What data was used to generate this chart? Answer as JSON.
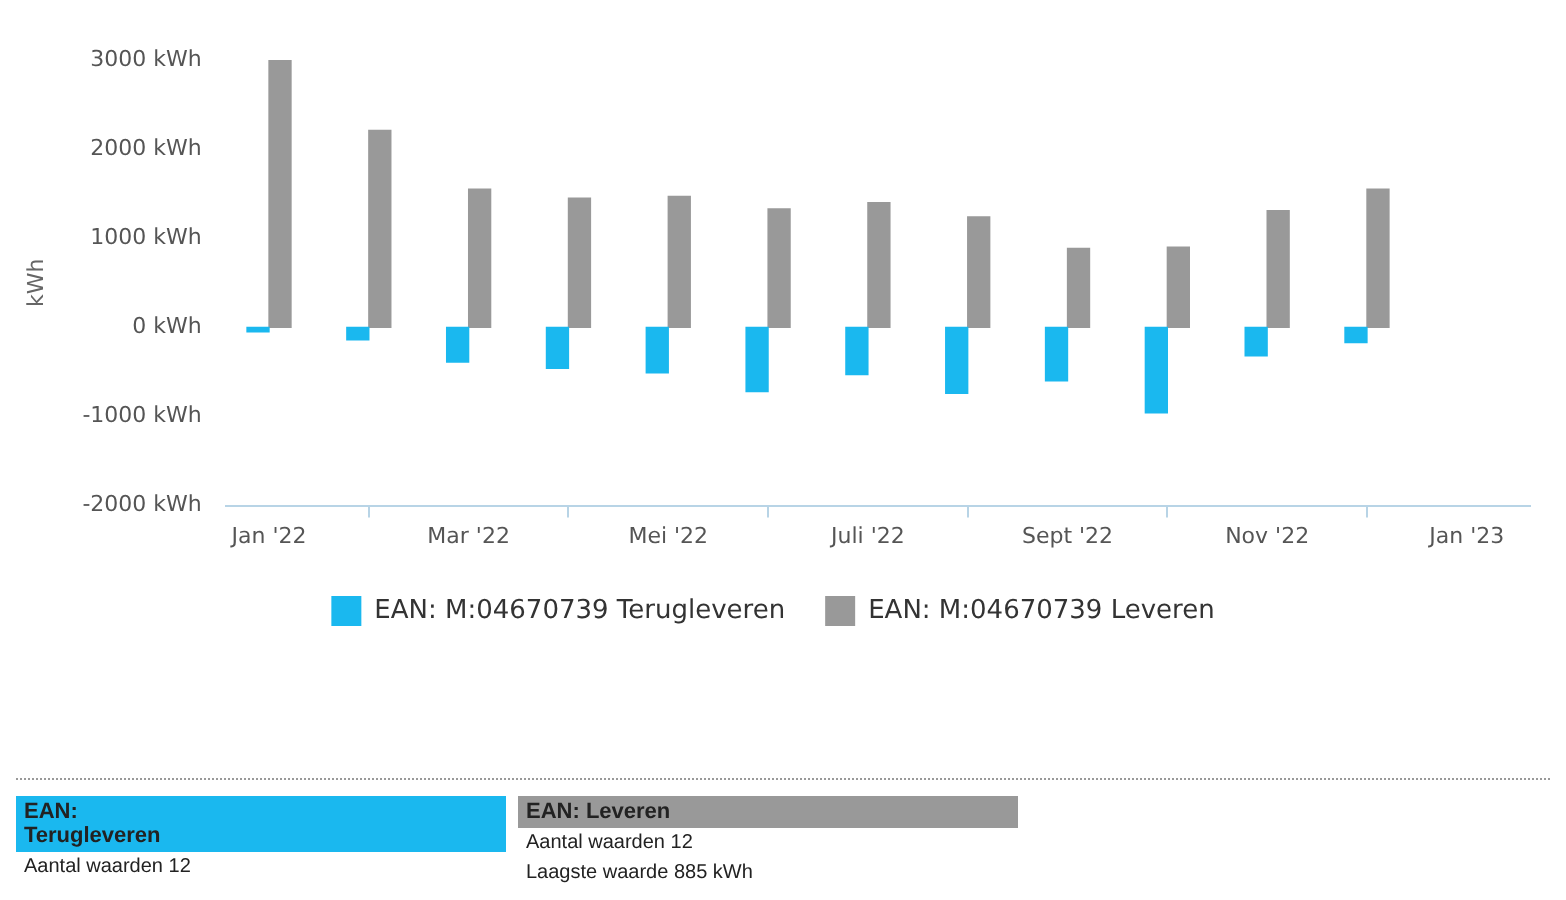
{
  "chart_data": {
    "type": "bar",
    "ylabel": "kWh",
    "x": [
      "2022-01",
      "2022-02",
      "2022-03",
      "2022-04",
      "2022-05",
      "2022-06",
      "2022-07",
      "2022-08",
      "2022-09",
      "2022-10",
      "2022-11",
      "2022-12"
    ],
    "series": [
      {
        "name": "EAN: M:04670739 Terugleveren",
        "color": "#1ab8ef",
        "values": [
          -50,
          -140,
          -390,
          -460,
          -510,
          -720,
          -530,
          -740,
          -600,
          -960,
          -320,
          -170
        ]
      },
      {
        "name": "EAN: M:04670739 Leveren",
        "color": "#999999",
        "values": [
          3000,
          2210,
          1550,
          1450,
          1470,
          1330,
          1400,
          1240,
          885,
          900,
          1310,
          1550
        ]
      }
    ],
    "xlim": [
      "2021-12-18",
      "2023-01-20"
    ],
    "xticks": [
      {
        "value": "2022-01",
        "label": "Jan '22"
      },
      {
        "value": "2022-03",
        "label": "Mar '22"
      },
      {
        "value": "2022-05",
        "label": "Mei '22"
      },
      {
        "value": "2022-07",
        "label": "Juli '22"
      },
      {
        "value": "2022-09",
        "label": "Sept '22"
      },
      {
        "value": "2022-11",
        "label": "Nov '22"
      },
      {
        "value": "2023-01",
        "label": "Jan '23"
      }
    ],
    "ylim": [
      -2000,
      3000
    ],
    "yticks": [
      {
        "value": -2000,
        "label": "-2000 kWh"
      },
      {
        "value": -1000,
        "label": "-1000 kWh"
      },
      {
        "value": 0,
        "label": "0 kWh"
      },
      {
        "value": 1000,
        "label": "1000 kWh"
      },
      {
        "value": 2000,
        "label": "2000 kWh"
      },
      {
        "value": 3000,
        "label": "3000 kWh"
      }
    ],
    "grid": false,
    "legend": "bottom",
    "annotations": [
      "EAN:",
      "Terugleveren",
      "Aantal waarden 12",
      "EAN:",
      "Leveren",
      "Aantal waarden 12",
      "Laagste waarde 885 kWh"
    ]
  }
}
